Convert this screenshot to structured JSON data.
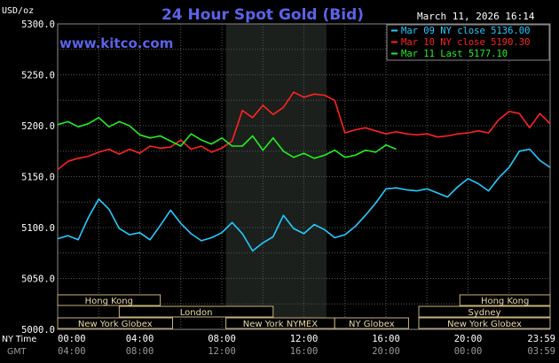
{
  "chart_data": {
    "type": "line",
    "title": "24 Hour Spot Gold (Bid)",
    "watermark": "www.kitco.com",
    "timestamp": "March 11, 2026 16:14",
    "y_unit_label": "USD/oz",
    "ylim": [
      5000,
      5300
    ],
    "yticks": [
      "5300.0",
      "5250.0",
      "5200.0",
      "5150.0",
      "5100.0",
      "5050.0",
      "5000.0"
    ],
    "ytick_values": [
      5300,
      5250,
      5200,
      5150,
      5100,
      5050,
      5000
    ],
    "xlim": [
      0,
      24
    ],
    "x_ticks_hours": [
      0,
      4,
      8,
      12,
      16,
      20,
      23.98
    ],
    "x_row_label_ny": "NY Time",
    "x_row_label_gmt": "GMT",
    "x_ticks_ny": [
      "00:00",
      "04:00",
      "08:00",
      "12:00",
      "16:00",
      "20:00",
      "23:59"
    ],
    "x_ticks_gmt": [
      "04:00",
      "08:00",
      "12:00",
      "16:00",
      "20:00",
      "00:00",
      "03:59"
    ],
    "highlight_hours": [
      8.2,
      13.1
    ],
    "grid": true,
    "legend_position": "top-right",
    "series": [
      {
        "name": "Mar 09 NY close 5136.00",
        "color": "#22ccff",
        "x": [
          0,
          0.5,
          1,
          1.5,
          2,
          2.5,
          3,
          3.5,
          4,
          4.5,
          5,
          5.5,
          6,
          6.5,
          7,
          7.5,
          8,
          8.5,
          9,
          9.5,
          10,
          10.5,
          11,
          11.5,
          12,
          12.5,
          13,
          13.5,
          14,
          14.5,
          15,
          15.5,
          16,
          16.5,
          17,
          17.5,
          18,
          18.5,
          19,
          19.5,
          20,
          20.5,
          21,
          21.5,
          22,
          22.5,
          23,
          23.5,
          24
        ],
        "values": [
          5089,
          5092,
          5088,
          5110,
          5128,
          5118,
          5099,
          5093,
          5095,
          5088,
          5102,
          5117,
          5104,
          5094,
          5087,
          5090,
          5095,
          5105,
          5094,
          5077,
          5085,
          5091,
          5112,
          5099,
          5094,
          5103,
          5098,
          5090,
          5093,
          5101,
          5112,
          5124,
          5138,
          5139,
          5137,
          5136,
          5138,
          5134,
          5130,
          5140,
          5148,
          5143,
          5136,
          5149,
          5159,
          5175,
          5177,
          5166,
          5159
        ]
      },
      {
        "name": "Mar 10 NY close 5190.30",
        "color": "#ff2222",
        "x": [
          0,
          0.5,
          1,
          1.5,
          2,
          2.5,
          3,
          3.5,
          4,
          4.5,
          5,
          5.5,
          6,
          6.5,
          7,
          7.5,
          8,
          8.5,
          9,
          9.5,
          10,
          10.5,
          11,
          11.5,
          12,
          12.5,
          13,
          13.5,
          14,
          14.5,
          15,
          15.5,
          16,
          16.5,
          17,
          17.5,
          18,
          18.5,
          19,
          19.5,
          20,
          20.5,
          21,
          21.5,
          22,
          22.5,
          23,
          23.5,
          24
        ],
        "values": [
          5157,
          5165,
          5168,
          5170,
          5174,
          5177,
          5172,
          5177,
          5173,
          5180,
          5178,
          5179,
          5186,
          5177,
          5180,
          5174,
          5178,
          5185,
          5215,
          5208,
          5220,
          5211,
          5218,
          5233,
          5228,
          5231,
          5230,
          5225,
          5193,
          5196,
          5198,
          5195,
          5192,
          5194,
          5192,
          5191,
          5192,
          5189,
          5190,
          5192,
          5193,
          5195,
          5193,
          5206,
          5214,
          5212,
          5198,
          5212,
          5202
        ]
      },
      {
        "name": "Mar 11 Last 5177.10",
        "color": "#22ee22",
        "x": [
          0,
          0.5,
          1,
          1.5,
          2,
          2.5,
          3,
          3.5,
          4,
          4.5,
          5,
          5.5,
          6,
          6.5,
          7,
          7.5,
          8,
          8.5,
          9,
          9.5,
          10,
          10.5,
          11,
          11.5,
          12,
          12.5,
          13,
          13.5,
          14,
          14.5,
          15,
          15.5,
          16,
          16.5
        ],
        "values": [
          5201,
          5204,
          5199,
          5202,
          5208,
          5199,
          5204,
          5200,
          5191,
          5188,
          5190,
          5185,
          5180,
          5192,
          5186,
          5182,
          5188,
          5180,
          5180,
          5190,
          5176,
          5188,
          5175,
          5169,
          5173,
          5168,
          5171,
          5176,
          5169,
          5171,
          5176,
          5174,
          5181,
          5177
        ]
      }
    ],
    "sessions": [
      {
        "label": "Hong Kong",
        "start": 0,
        "end": 5,
        "row": 0
      },
      {
        "label": "Hong Kong",
        "start": 19.6,
        "end": 24,
        "row": 0
      },
      {
        "label": "London",
        "start": 3,
        "end": 10.5,
        "row": 1
      },
      {
        "label": "Sydney",
        "start": 17.6,
        "end": 24,
        "row": 1
      },
      {
        "label": "New York Globex",
        "start": 0,
        "end": 5.6,
        "row": 2
      },
      {
        "label": "New York NYMEX",
        "start": 8.2,
        "end": 13.5,
        "row": 2
      },
      {
        "label": "NY Globex",
        "start": 13.5,
        "end": 17.1,
        "row": 2
      },
      {
        "label": "New York Globex",
        "start": 17.6,
        "end": 24,
        "row": 2
      }
    ]
  }
}
